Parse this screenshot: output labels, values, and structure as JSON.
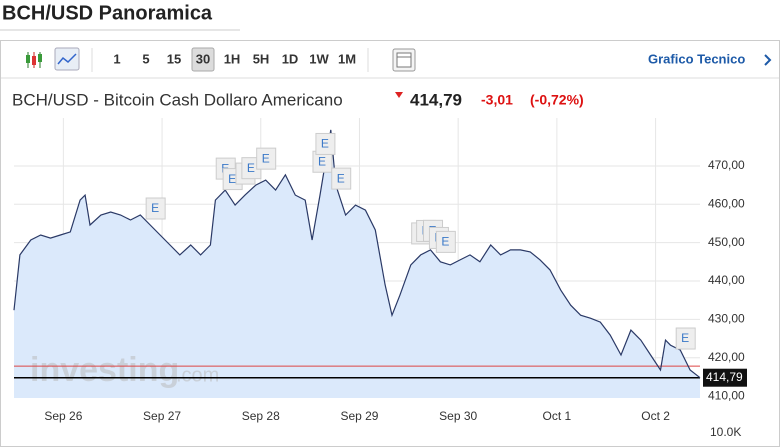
{
  "header": {
    "title": "BCH/USD Panoramica"
  },
  "toolbar": {
    "intervals": [
      "1",
      "5",
      "15",
      "30",
      "1H",
      "5H",
      "1D",
      "1W",
      "1M"
    ],
    "active_interval": 3,
    "link": "Grafico Tecnico"
  },
  "quote": {
    "name": "BCH/USD - Bitcoin Cash Dollaro Americano",
    "price": "414,79",
    "change": "-3,01",
    "change_pct": "(-0,72%)"
  },
  "chart_data": {
    "type": "line",
    "color": "#2a3966",
    "fill": "#dbe9fb",
    "x": [
      -0.5,
      -0.44,
      -0.33,
      -0.23,
      -0.13,
      -0.03,
      0.07,
      0.17,
      0.22,
      0.27,
      0.38,
      0.48,
      0.58,
      0.68,
      0.78,
      0.88,
      0.98,
      1.08,
      1.18,
      1.29,
      1.39,
      1.49,
      1.54,
      1.64,
      1.74,
      1.84,
      1.95,
      2.05,
      2.15,
      2.25,
      2.35,
      2.45,
      2.52,
      2.6,
      2.71,
      2.76,
      2.86,
      2.96,
      3.06,
      3.16,
      3.26,
      3.33,
      3.41,
      3.52,
      3.62,
      3.72,
      3.82,
      3.92,
      4.02,
      4.12,
      4.22,
      4.33,
      4.43,
      4.53,
      4.63,
      4.73,
      4.83,
      4.93,
      5.04,
      5.14,
      5.24,
      5.34,
      5.44,
      5.54,
      5.65,
      5.75,
      5.85,
      5.95,
      6.05,
      6.1,
      6.15,
      6.25,
      6.35,
      6.45
    ],
    "values": [
      432.4,
      446.8,
      450.7,
      452,
      451.2,
      452,
      452.8,
      461.1,
      462.4,
      454.6,
      457.2,
      458,
      457.2,
      455.9,
      457.2,
      454.6,
      452,
      449.4,
      446.8,
      449.4,
      446.8,
      449.4,
      461.1,
      463.7,
      459.8,
      462.4,
      465,
      466.3,
      463.7,
      467.7,
      462.4,
      461.1,
      450.7,
      462.4,
      479.4,
      465,
      457.2,
      459.8,
      458.5,
      453.3,
      439,
      431.1,
      436.3,
      444.2,
      446.8,
      448.1,
      445,
      444.2,
      445.5,
      446.8,
      445,
      449.4,
      446.8,
      448.1,
      448.1,
      447.6,
      445.5,
      442.9,
      437.6,
      433.7,
      431.1,
      430.3,
      429.3,
      425.9,
      420.7,
      427.2,
      424.6,
      420.7,
      416.8,
      424.6,
      423.3,
      422,
      416.8,
      414.8
    ],
    "xlim": [
      -0.5,
      6.45
    ],
    "xticks": [
      {
        "value": 0,
        "label": "Sep 26"
      },
      {
        "value": 1,
        "label": "Sep 27"
      },
      {
        "value": 2,
        "label": "Sep 28"
      },
      {
        "value": 3,
        "label": "Sep 29"
      },
      {
        "value": 4,
        "label": "Sep 30"
      },
      {
        "value": 5,
        "label": "Oct 1"
      },
      {
        "value": 6,
        "label": "Oct 2"
      }
    ],
    "ylim": [
      409.5,
      482.5
    ],
    "yticks": [
      {
        "value": 410,
        "label": "410,00"
      },
      {
        "value": 420,
        "label": "420,00"
      },
      {
        "value": 430,
        "label": "430,00"
      },
      {
        "value": 440,
        "label": "440,00"
      },
      {
        "value": 450,
        "label": "450,00"
      },
      {
        "value": 460,
        "label": "460,00"
      },
      {
        "value": 470,
        "label": "470,00"
      }
    ],
    "grid": true,
    "last_price": {
      "value": 414.79,
      "label": "414,79"
    },
    "reference_line": 417.8,
    "volume_label": "10.0K",
    "watermark": "investing",
    "watermark_suffix": ".com",
    "events": [
      {
        "x": 0.93,
        "label": "E"
      },
      {
        "x": 1.64,
        "label": "E"
      },
      {
        "x": 1.71,
        "label": "E"
      },
      {
        "x": 1.84,
        "label": "E"
      },
      {
        "x": 1.9,
        "label": "E"
      },
      {
        "x": 2.05,
        "label": "E"
      },
      {
        "x": 2.62,
        "label": "E"
      },
      {
        "x": 2.65,
        "label": "E"
      },
      {
        "x": 2.81,
        "label": "E"
      },
      {
        "x": 3.62,
        "label": "E"
      },
      {
        "x": 3.67,
        "label": "E"
      },
      {
        "x": 3.74,
        "label": "E"
      },
      {
        "x": 3.8,
        "label": "E"
      },
      {
        "x": 3.87,
        "label": "E"
      },
      {
        "x": 6.3,
        "label": "E"
      }
    ]
  }
}
